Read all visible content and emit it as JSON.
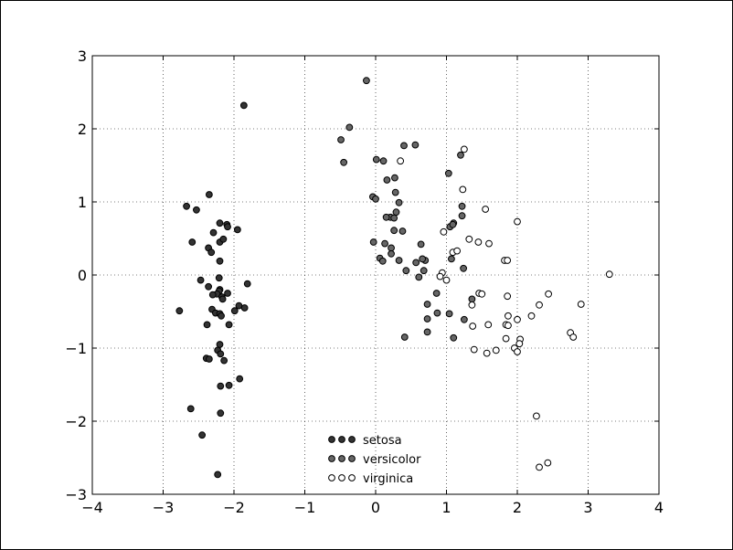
{
  "chart_data": {
    "type": "scatter",
    "title": "",
    "xlabel": "",
    "ylabel": "",
    "xlim": [
      -4,
      4
    ],
    "ylim": [
      -3,
      3
    ],
    "xticks": [
      -4,
      -3,
      -2,
      -1,
      0,
      1,
      2,
      3,
      4
    ],
    "yticks": [
      -3,
      -2,
      -1,
      0,
      1,
      2,
      3
    ],
    "x_tick_labels": [
      "−4",
      "−3",
      "−2",
      "−1",
      "0",
      "1",
      "2",
      "3",
      "4"
    ],
    "y_tick_labels": [
      "−3",
      "−2",
      "−1",
      "0",
      "1",
      "2",
      "3"
    ],
    "grid": true,
    "legend_position": "lower-center",
    "series": [
      {
        "name": "setosa",
        "color": "#333333",
        "points": [
          [
            -1.86,
            2.32
          ],
          [
            -2.67,
            0.94
          ],
          [
            -2.53,
            0.89
          ],
          [
            -2.35,
            1.1
          ],
          [
            -2.1,
            0.69
          ],
          [
            -2.09,
            0.66
          ],
          [
            -2.2,
            0.71
          ],
          [
            -1.95,
            0.62
          ],
          [
            -2.2,
            0.45
          ],
          [
            -2.15,
            0.49
          ],
          [
            -2.59,
            0.45
          ],
          [
            -2.29,
            0.58
          ],
          [
            -2.36,
            0.37
          ],
          [
            -2.32,
            0.31
          ],
          [
            -2.2,
            0.19
          ],
          [
            -2.47,
            -0.07
          ],
          [
            -2.21,
            -0.04
          ],
          [
            -2.2,
            -0.2
          ],
          [
            -2.36,
            -0.16
          ],
          [
            -2.21,
            -0.22
          ],
          [
            -2.24,
            -0.26
          ],
          [
            -2.17,
            -0.3
          ],
          [
            -2.09,
            -0.25
          ],
          [
            -2.3,
            -0.27
          ],
          [
            -2.16,
            -0.33
          ],
          [
            -1.81,
            -0.12
          ],
          [
            -1.93,
            -0.42
          ],
          [
            -1.85,
            -0.45
          ],
          [
            -1.99,
            -0.49
          ],
          [
            -2.77,
            -0.49
          ],
          [
            -2.31,
            -0.47
          ],
          [
            -2.26,
            -0.52
          ],
          [
            -2.2,
            -0.53
          ],
          [
            -2.18,
            -0.56
          ],
          [
            -2.38,
            -0.68
          ],
          [
            -2.07,
            -0.68
          ],
          [
            -2.2,
            -0.95
          ],
          [
            -2.23,
            -1.03
          ],
          [
            -2.19,
            -1.08
          ],
          [
            -2.39,
            -1.14
          ],
          [
            -2.35,
            -1.15
          ],
          [
            -2.14,
            -1.17
          ],
          [
            -1.92,
            -1.42
          ],
          [
            -2.19,
            -1.52
          ],
          [
            -2.07,
            -1.51
          ],
          [
            -2.61,
            -1.83
          ],
          [
            -2.19,
            -1.89
          ],
          [
            -2.45,
            -2.19
          ],
          [
            -2.23,
            -2.73
          ]
        ]
      },
      {
        "name": "versicolor",
        "color": "#666666",
        "points": [
          [
            -0.13,
            2.66
          ],
          [
            -0.37,
            2.02
          ],
          [
            -0.49,
            1.85
          ],
          [
            -0.45,
            1.54
          ],
          [
            0.4,
            1.77
          ],
          [
            0.56,
            1.78
          ],
          [
            0.01,
            1.58
          ],
          [
            0.11,
            1.56
          ],
          [
            1.2,
            1.64
          ],
          [
            1.03,
            1.39
          ],
          [
            0.16,
            1.3
          ],
          [
            0.27,
            1.33
          ],
          [
            0.28,
            1.13
          ],
          [
            0.33,
            0.99
          ],
          [
            -0.04,
            1.07
          ],
          [
            0.0,
            1.04
          ],
          [
            1.22,
            0.94
          ],
          [
            0.29,
            0.86
          ],
          [
            0.21,
            0.79
          ],
          [
            0.26,
            0.78
          ],
          [
            0.15,
            0.79
          ],
          [
            1.1,
            0.71
          ],
          [
            1.22,
            0.81
          ],
          [
            1.05,
            0.66
          ],
          [
            0.38,
            0.6
          ],
          [
            0.26,
            0.61
          ],
          [
            1.09,
            0.69
          ],
          [
            -0.03,
            0.45
          ],
          [
            0.13,
            0.43
          ],
          [
            0.64,
            0.42
          ],
          [
            0.22,
            0.37
          ],
          [
            0.22,
            0.29
          ],
          [
            0.06,
            0.23
          ],
          [
            0.1,
            0.19
          ],
          [
            0.33,
            0.2
          ],
          [
            0.57,
            0.17
          ],
          [
            0.7,
            0.2
          ],
          [
            0.66,
            0.22
          ],
          [
            0.43,
            0.06
          ],
          [
            0.68,
            0.06
          ],
          [
            1.24,
            0.09
          ],
          [
            0.61,
            -0.03
          ],
          [
            0.86,
            -0.25
          ],
          [
            1.36,
            -0.33
          ],
          [
            0.73,
            -0.4
          ],
          [
            0.87,
            -0.52
          ],
          [
            1.04,
            -0.53
          ],
          [
            1.25,
            -0.61
          ],
          [
            0.73,
            -0.6
          ],
          [
            0.41,
            -0.85
          ],
          [
            0.73,
            -0.78
          ],
          [
            1.1,
            -0.86
          ],
          [
            1.07,
            0.22
          ]
        ]
      },
      {
        "name": "virginica",
        "color": "#ffffff",
        "points": [
          [
            1.25,
            1.72
          ],
          [
            1.23,
            1.17
          ],
          [
            1.55,
            0.9
          ],
          [
            2.0,
            0.73
          ],
          [
            0.35,
            1.56
          ],
          [
            0.96,
            0.59
          ],
          [
            1.32,
            0.49
          ],
          [
            1.45,
            0.45
          ],
          [
            1.6,
            0.43
          ],
          [
            1.09,
            0.31
          ],
          [
            1.15,
            0.33
          ],
          [
            1.82,
            0.2
          ],
          [
            1.86,
            0.2
          ],
          [
            3.3,
            0.01
          ],
          [
            0.94,
            0.03
          ],
          [
            0.91,
            -0.02
          ],
          [
            1.0,
            -0.07
          ],
          [
            1.46,
            -0.25
          ],
          [
            1.5,
            -0.26
          ],
          [
            1.86,
            -0.29
          ],
          [
            1.36,
            -0.41
          ],
          [
            2.31,
            -0.41
          ],
          [
            2.9,
            -0.4
          ],
          [
            2.44,
            -0.26
          ],
          [
            1.87,
            -0.56
          ],
          [
            2.2,
            -0.56
          ],
          [
            2.0,
            -0.61
          ],
          [
            1.84,
            -0.68
          ],
          [
            1.87,
            -0.69
          ],
          [
            1.59,
            -0.68
          ],
          [
            1.37,
            -0.7
          ],
          [
            2.75,
            -0.79
          ],
          [
            2.79,
            -0.85
          ],
          [
            1.84,
            -0.87
          ],
          [
            2.04,
            -0.88
          ],
          [
            2.03,
            -0.94
          ],
          [
            1.39,
            -1.02
          ],
          [
            1.7,
            -1.03
          ],
          [
            1.96,
            -1.0
          ],
          [
            2.0,
            -1.05
          ],
          [
            1.57,
            -1.07
          ],
          [
            2.27,
            -1.93
          ],
          [
            2.43,
            -2.57
          ],
          [
            2.31,
            -2.63
          ]
        ]
      }
    ]
  }
}
